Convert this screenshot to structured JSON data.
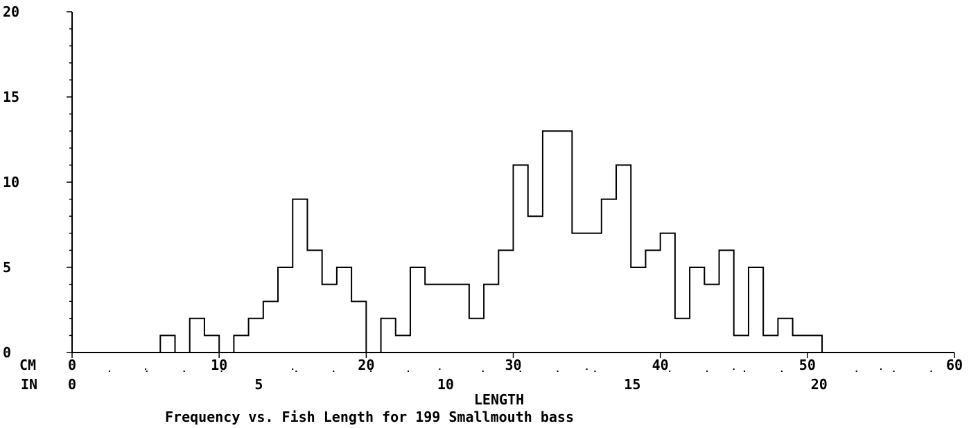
{
  "chart_data": {
    "type": "bar",
    "subtype": "step-histogram",
    "title": "Frequency vs. Fish Length for 199 Smallmouth bass",
    "xlabel": "LENGTH",
    "ylabel": "",
    "x_unit_label": "CM",
    "x2_unit_label": "IN",
    "xlim": [
      0,
      60
    ],
    "ylim": [
      0,
      20
    ],
    "bin_width_cm": 1,
    "yticks": [
      "0",
      "5",
      "10",
      "15",
      "20"
    ],
    "xticks_cm": [
      "0",
      "10",
      "20",
      "30",
      "40",
      "50",
      "60"
    ],
    "xticks_in": [
      "0",
      "5",
      "10",
      "15",
      "20"
    ],
    "xticks_in_values": [
      0,
      5,
      10,
      15,
      20
    ],
    "bins_cm": [
      6,
      7,
      8,
      9,
      10,
      11,
      12,
      13,
      14,
      15,
      16,
      17,
      18,
      19,
      20,
      21,
      22,
      23,
      24,
      25,
      26,
      27,
      28,
      29,
      30,
      31,
      32,
      33,
      34,
      35,
      36,
      37,
      38,
      39,
      40,
      41,
      42,
      43,
      44,
      45,
      46,
      47,
      48,
      49,
      50
    ],
    "values": [
      1,
      0,
      2,
      1,
      0,
      1,
      2,
      3,
      5,
      9,
      6,
      4,
      5,
      3,
      0,
      2,
      1,
      5,
      4,
      4,
      4,
      2,
      4,
      6,
      11,
      8,
      13,
      13,
      7,
      7,
      9,
      11,
      5,
      6,
      7,
      2,
      5,
      4,
      6,
      1,
      5,
      1,
      2,
      1,
      1
    ],
    "grid": false,
    "legend": "none",
    "line_color": "#000000",
    "background": "#ffffff"
  }
}
